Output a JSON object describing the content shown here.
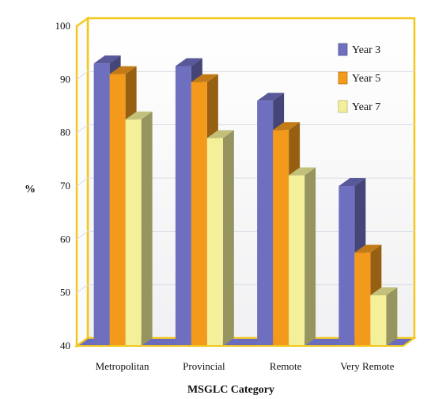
{
  "chart_data": {
    "type": "bar",
    "title": "",
    "xlabel": "MSGLC Category",
    "ylabel": "%",
    "categories": [
      "Metropolitan",
      "Provincial",
      "Remote",
      "Very Remote"
    ],
    "series": [
      {
        "name": "Year 3",
        "values": [
          93,
          92.5,
          86,
          70
        ],
        "color": "#6f6fc0"
      },
      {
        "name": "Year 5",
        "values": [
          91,
          89.5,
          80.5,
          57.5
        ],
        "color": "#f39a1c"
      },
      {
        "name": "Year 7",
        "values": [
          82.5,
          79,
          72,
          49.5
        ],
        "color": "#f4f09a"
      }
    ],
    "ylim": [
      40,
      100
    ],
    "yticks": [
      "40",
      "50",
      "60",
      "70",
      "80",
      "90",
      "100"
    ],
    "grid": true,
    "legend_position": "top-right",
    "frame_color": "#f2c81e"
  }
}
